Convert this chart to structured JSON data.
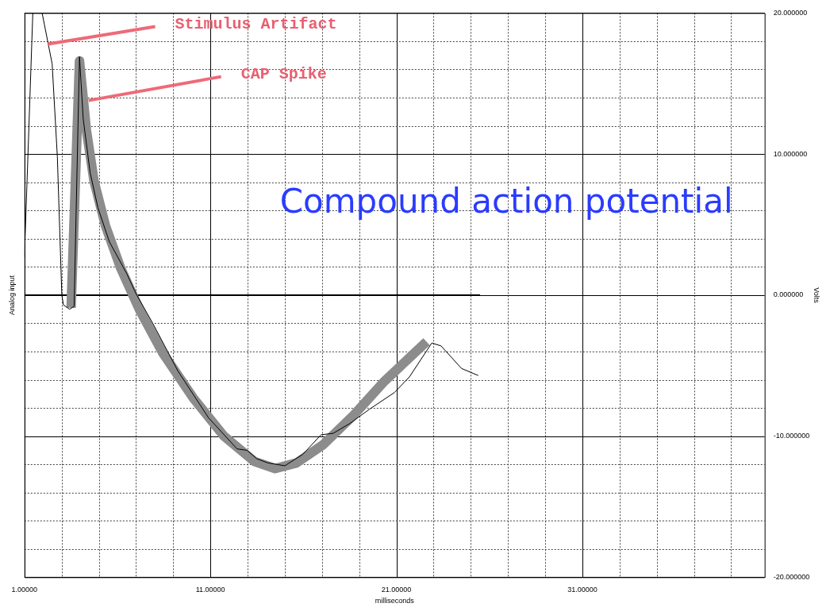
{
  "chart_data": {
    "type": "line",
    "xlabel": "milliseconds",
    "ylabel": "Analog input",
    "y2label": "Volts",
    "xlim": [
      1,
      40.8
    ],
    "xticks": [
      {
        "value": 1,
        "label": "1.00000"
      },
      {
        "value": 3,
        "label": null
      },
      {
        "value": 5,
        "label": null
      },
      {
        "value": 7,
        "label": null
      },
      {
        "value": 9,
        "label": null
      },
      {
        "value": 11,
        "label": "11.00000"
      },
      {
        "value": 13,
        "label": null
      },
      {
        "value": 15,
        "label": null
      },
      {
        "value": 17,
        "label": null
      },
      {
        "value": 19,
        "label": null
      },
      {
        "value": 21,
        "label": "21.00000"
      },
      {
        "value": 23,
        "label": null
      },
      {
        "value": 25,
        "label": null
      },
      {
        "value": 27,
        "label": null
      },
      {
        "value": 29,
        "label": null
      },
      {
        "value": 31,
        "label": "31.00000"
      },
      {
        "value": 33,
        "label": null
      },
      {
        "value": 35,
        "label": null
      },
      {
        "value": 37,
        "label": null
      },
      {
        "value": 39,
        "label": null
      }
    ],
    "ylim": [
      -20,
      20
    ],
    "yticks": [
      {
        "value": -20,
        "label": "-20.000000"
      },
      {
        "value": -18,
        "label": null
      },
      {
        "value": -16,
        "label": null
      },
      {
        "value": -14,
        "label": null
      },
      {
        "value": -12,
        "label": null
      },
      {
        "value": -10,
        "label": "-10.000000"
      },
      {
        "value": -8,
        "label": null
      },
      {
        "value": -6,
        "label": null
      },
      {
        "value": -4,
        "label": null
      },
      {
        "value": -2,
        "label": null
      },
      {
        "value": 0,
        "label": "0.000000"
      },
      {
        "value": 2,
        "label": null
      },
      {
        "value": 4,
        "label": null
      },
      {
        "value": 6,
        "label": null
      },
      {
        "value": 8,
        "label": null
      },
      {
        "value": 10,
        "label": "10.000000"
      },
      {
        "value": 12,
        "label": null
      },
      {
        "value": 14,
        "label": null
      },
      {
        "value": 16,
        "label": null
      },
      {
        "value": 18,
        "label": null
      },
      {
        "value": 20,
        "label": "20.000000"
      }
    ],
    "grid": true,
    "legend": false,
    "marker": "none",
    "line_style": "solid",
    "series": [
      {
        "color": "#000000",
        "x": [
          1.0,
          1.45,
          1.95,
          2.49,
          2.77,
          3.01,
          3.1,
          3.43,
          3.67,
          3.96,
          4.16,
          4.53,
          4.95,
          5.56,
          6.51,
          7.0,
          7.9,
          9.26,
          10.9,
          12.43,
          12.96,
          13.49,
          14.1,
          15.0,
          15.96,
          16.95,
          17.6,
          18.5,
          19.54,
          20.9,
          21.7,
          22.9,
          23.4,
          24.5,
          25.4
        ],
        "values": [
          2.7,
          20,
          20,
          16.4,
          9.8,
          0,
          -0.7,
          -1.0,
          -0.8,
          16.9,
          12.5,
          8.7,
          6.2,
          3.8,
          1.5,
          0.1,
          -2.0,
          -5.4,
          -8.7,
          -10.9,
          -11.0,
          -11.6,
          -11.9,
          -12.1,
          -11.3,
          -9.9,
          -9.8,
          -9.1,
          -8.1,
          -6.9,
          -5.8,
          -3.4,
          -3.6,
          -5.2,
          -5.7
        ]
      },
      {
        "color": "#8c8c8c",
        "x": [
          3.51,
          3.96,
          4.33,
          4.74,
          5.36,
          6.18,
          7.21,
          8.44,
          10.08,
          11.73,
          13.37,
          14.48,
          15.63,
          17.07,
          18.71,
          20.36,
          22.62
        ],
        "values": [
          -0.9,
          16.6,
          11.7,
          8.1,
          4.9,
          1.9,
          -1.1,
          -4.1,
          -7.3,
          -10.0,
          -11.8,
          -12.3,
          -11.9,
          -10.6,
          -8.5,
          -6.1,
          -3.3
        ]
      },
      {
        "color": "#000000",
        "x": [
          1,
          25.5
        ],
        "values": [
          0,
          0
        ]
      }
    ],
    "annotations": [
      {
        "text": "Stimulus Artifact",
        "x": 2.27,
        "y": 17.8
      },
      {
        "text": "CAP Spike",
        "x": 4.45,
        "y": 13.8
      },
      "Compound action potential"
    ]
  }
}
